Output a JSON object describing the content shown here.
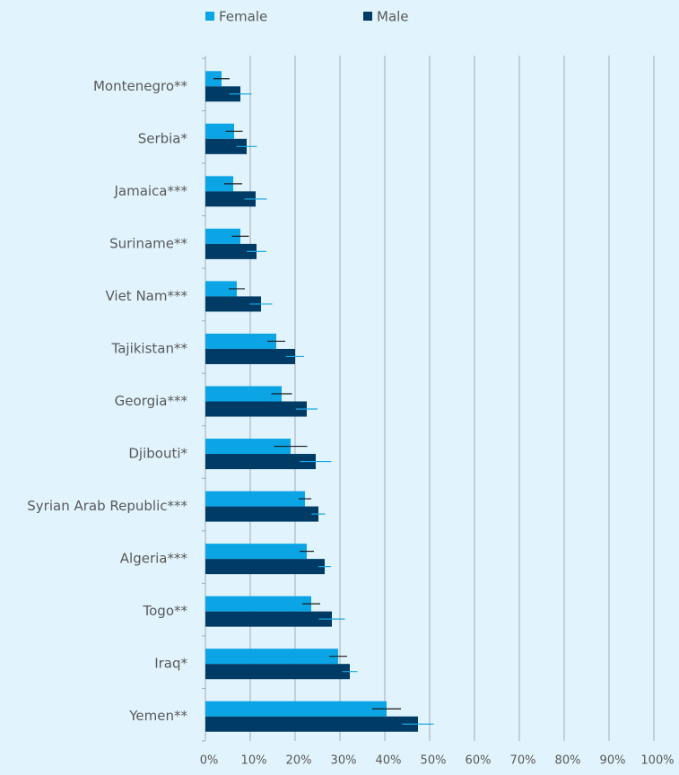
{
  "chart_data": {
    "type": "barh",
    "categories": [
      "Montenegro**",
      "Serbia*",
      "Jamaica***",
      "Suriname**",
      "Viet Nam***",
      "Tajikistan**",
      "Georgia***",
      "Djibouti*",
      "Syrian Arab Republic***",
      "Algeria***",
      "Togo**",
      "Iraq*",
      "Yemen**"
    ],
    "series": [
      {
        "name": "Female",
        "color": "#0ba5e6",
        "error_color": "#1a1a1a",
        "values": [
          3.6,
          6.4,
          6.2,
          7.8,
          7.0,
          15.8,
          17.0,
          19.0,
          22.2,
          22.6,
          23.6,
          29.6,
          40.4
        ],
        "errors": [
          1.8,
          1.9,
          2.0,
          1.9,
          1.8,
          2.0,
          2.3,
          3.7,
          1.4,
          1.6,
          2.0,
          2.0,
          3.2
        ]
      },
      {
        "name": "Male",
        "color": "#003b66",
        "error_color": "#1ba8e2",
        "values": [
          7.8,
          9.2,
          11.2,
          11.4,
          12.4,
          20.0,
          22.6,
          24.6,
          25.2,
          26.6,
          28.2,
          32.2,
          47.4
        ],
        "errors": [
          2.5,
          2.3,
          2.5,
          2.2,
          2.5,
          2.0,
          2.4,
          3.5,
          1.5,
          1.4,
          2.9,
          1.7,
          3.5
        ]
      }
    ],
    "xlim": [
      0,
      100
    ],
    "xticks": [
      {
        "value": 0,
        "label": "0%"
      },
      {
        "value": 10,
        "label": "10%"
      },
      {
        "value": 20,
        "label": "20%"
      },
      {
        "value": 30,
        "label": "30%"
      },
      {
        "value": 40,
        "label": "40%"
      },
      {
        "value": 50,
        "label": "50%"
      },
      {
        "value": 60,
        "label": "60%"
      },
      {
        "value": 70,
        "label": "70%"
      },
      {
        "value": 80,
        "label": "80%"
      },
      {
        "value": 90,
        "label": "90%"
      },
      {
        "value": 100,
        "label": "100%"
      }
    ],
    "grid": true,
    "legend": "top"
  }
}
